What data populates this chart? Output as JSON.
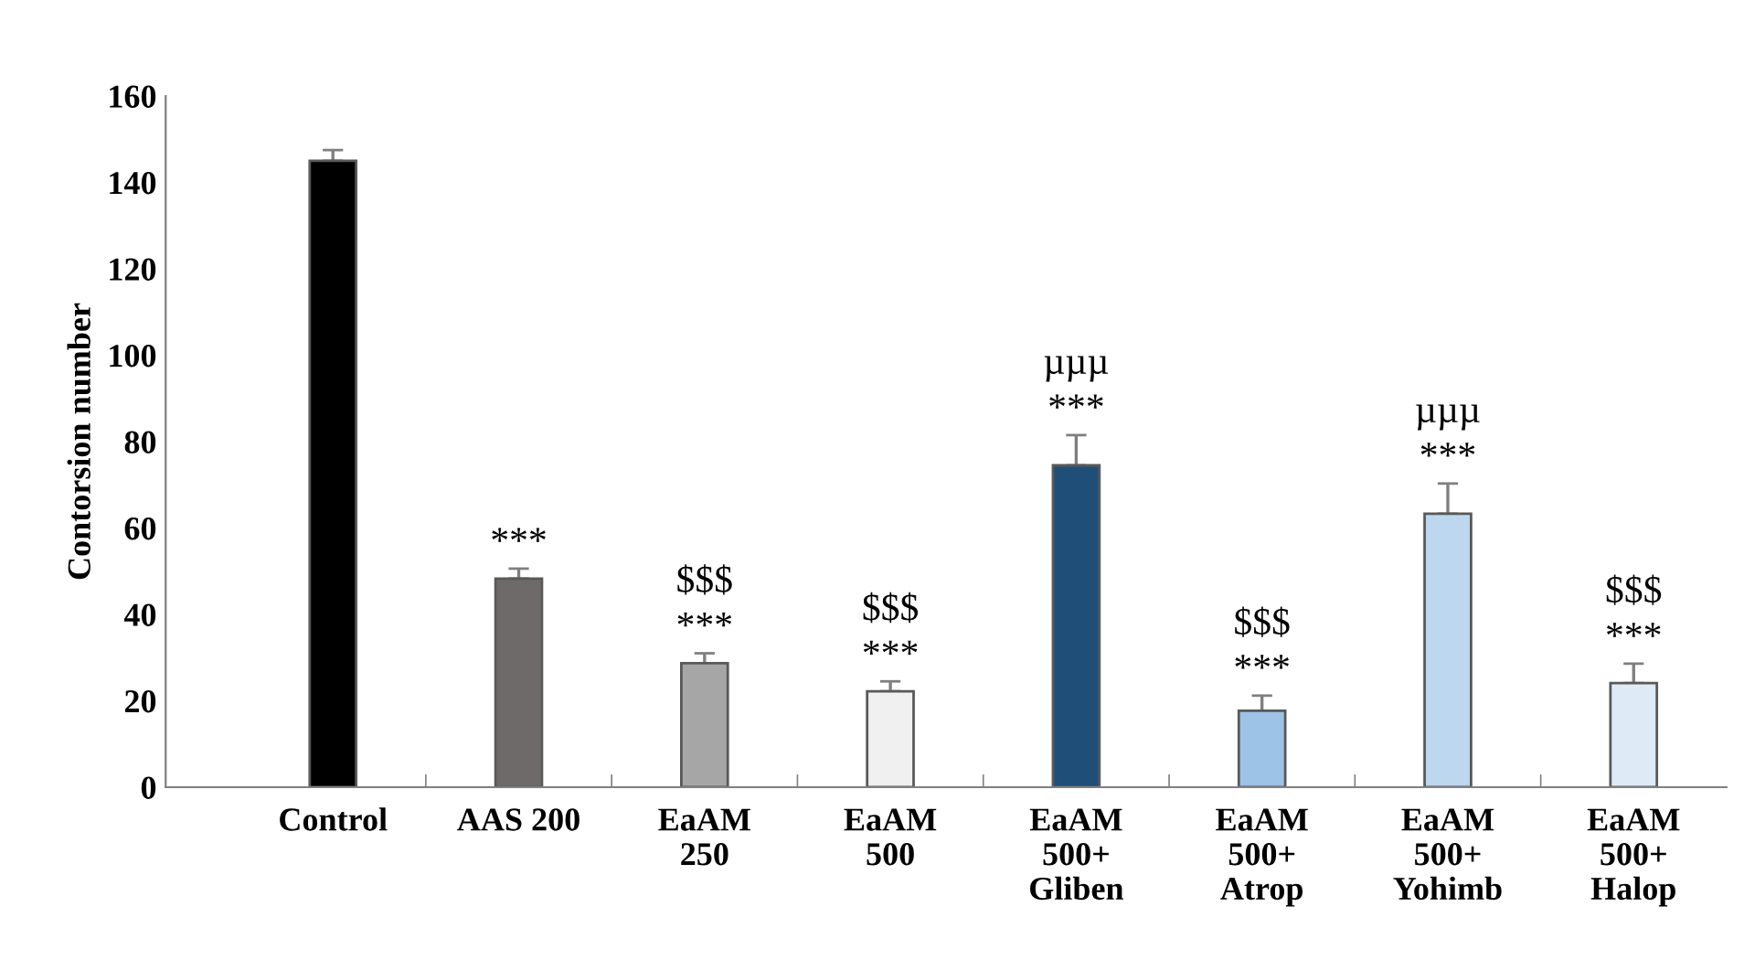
{
  "chart_data": {
    "type": "bar",
    "ylabel": "Contorsion number",
    "categories": [
      "Control",
      "AAS 200",
      "EaAM\n250",
      "EaAM\n500",
      "EaAM\n500+\nGliben",
      "EaAM\n500+\nAtrop",
      "EaAM\n500+\nYohimb",
      "EaAM\n500+\nHalop"
    ],
    "values": [
      145,
      48.3,
      28.7,
      22.2,
      74.5,
      17.7,
      63.3,
      24.1
    ],
    "errors": [
      2.5,
      2.3,
      2.3,
      2.3,
      7,
      3.5,
      7,
      4.5
    ],
    "colors": [
      "#000000",
      "#6f6a6a",
      "#a6a6a6",
      "#f0f0f0",
      "#1f4e79",
      "#9dc3e6",
      "#bdd7ee",
      "#deebf7"
    ],
    "ylim": [
      0,
      160
    ],
    "yticks": [
      0,
      20,
      40,
      60,
      80,
      100,
      120,
      140,
      160
    ],
    "grid": false,
    "legend": false,
    "annotations": [
      {
        "text": "***",
        "x": "AAS 200",
        "y": 48.3
      },
      {
        "text": "***",
        "x": "EaAM\n250",
        "y": 28.7
      },
      {
        "text": "$$$",
        "x": "EaAM\n250",
        "y": 28.7
      },
      {
        "text": "***",
        "x": "EaAM\n500",
        "y": 22.2
      },
      {
        "text": "$$$",
        "x": "EaAM\n500",
        "y": 22.2
      },
      {
        "text": "***",
        "x": "EaAM\n500+\nGliben",
        "y": 74.5
      },
      {
        "text": "µµµ",
        "x": "EaAM\n500+\nGliben",
        "y": 74.5
      },
      {
        "text": "***",
        "x": "EaAM\n500+\nAtrop",
        "y": 17.7
      },
      {
        "text": "$$$",
        "x": "EaAM\n500+\nAtrop",
        "y": 17.7
      },
      {
        "text": "***",
        "x": "EaAM\n500+\nYohimb",
        "y": 63.3
      },
      {
        "text": "µµµ",
        "x": "EaAM\n500+\nYohimb",
        "y": 63.3
      },
      {
        "text": "***",
        "x": "EaAM\n500+\nHalop",
        "y": 24.1
      },
      {
        "text": "$$$",
        "x": "EaAM\n500+\nHalop",
        "y": 24.1
      }
    ]
  }
}
